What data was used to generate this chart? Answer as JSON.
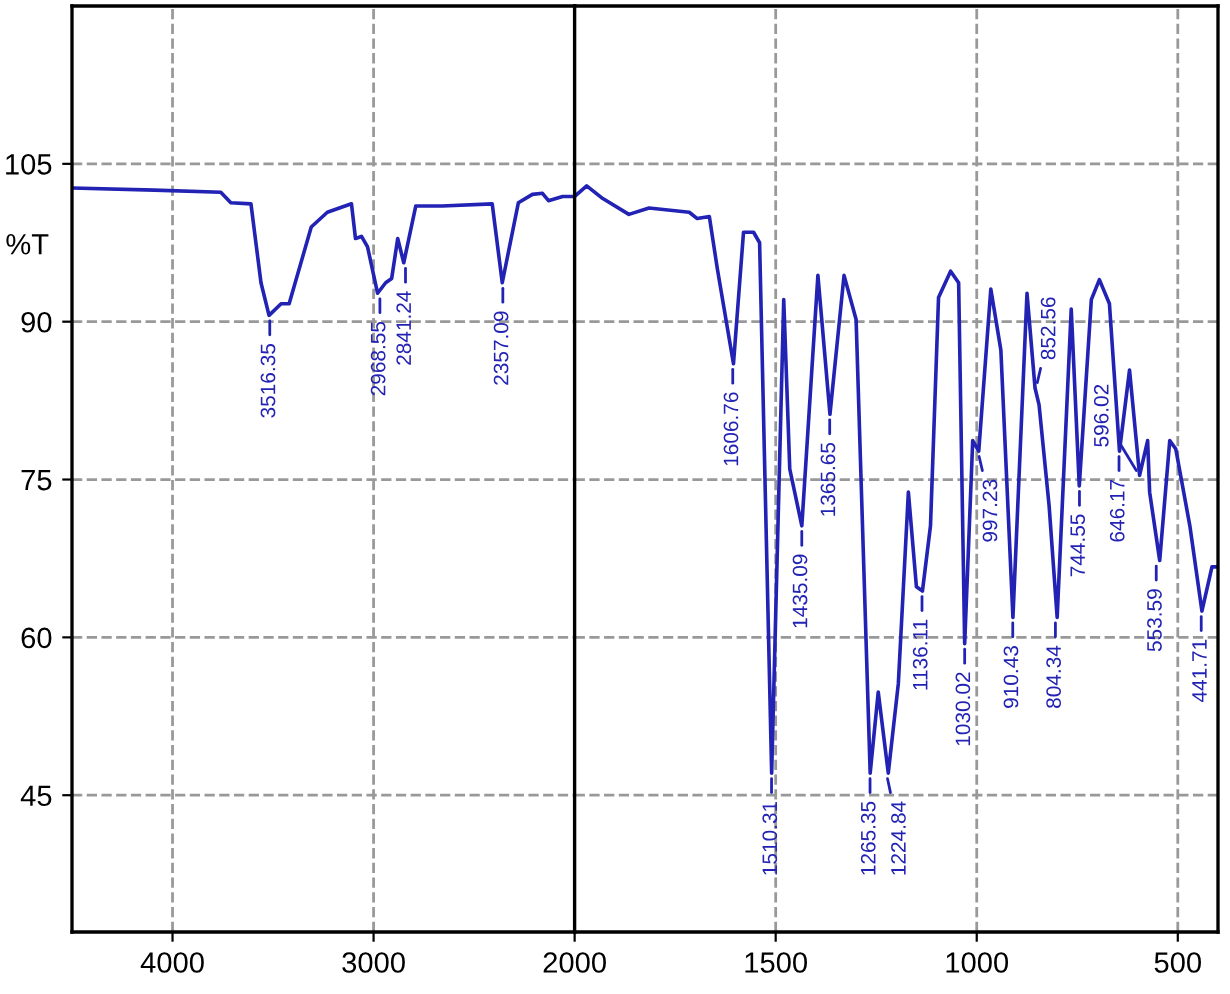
{
  "chart_data": [
    {
      "type": "line",
      "ylabel": "%T",
      "x": [
        4500,
        4090,
        3760,
        3710,
        3610,
        3560,
        3520,
        3460,
        3420,
        3310,
        3230,
        3110,
        3090,
        3060,
        3030,
        2980,
        2940,
        2910,
        2880,
        2850,
        2790,
        2660,
        2410,
        2360,
        2340,
        2280,
        2210,
        2160,
        2130,
        2060,
        2000
      ],
      "series": [
        {
          "color": "#2222b4",
          "values": [
            102.7,
            102.5,
            102.3,
            101.3,
            101.2,
            93.7,
            90.6,
            91.7,
            91.7,
            99.0,
            100.4,
            101.2,
            97.9,
            98.1,
            97.1,
            92.7,
            93.7,
            94.1,
            97.9,
            95.6,
            101.0,
            101.0,
            101.2,
            93.7,
            95.6,
            101.3,
            102.1,
            102.2,
            101.5,
            101.9,
            101.9
          ]
        }
      ],
      "xlim": [
        4500,
        2000
      ],
      "ylim": [
        32,
        120
      ],
      "xticks": [
        4000,
        3000
      ],
      "yticks": [
        45,
        60,
        75,
        90,
        105
      ],
      "grid": true,
      "line_style": "solid",
      "marker": "none",
      "annotations": [
        {
          "text": "3516.35",
          "x": 3516.35,
          "y": 90.6
        },
        {
          "text": "2968.55",
          "x": 2968.55,
          "y": 92.7
        },
        {
          "text": "2841.24",
          "x": 2841.24,
          "y": 95.6
        },
        {
          "text": "2357.09",
          "x": 2357.09,
          "y": 93.7
        }
      ]
    },
    {
      "type": "line",
      "tick_labels": "x",
      "x": [
        2000,
        1970,
        1930,
        1865,
        1815,
        1715,
        1695,
        1665,
        1645,
        1605,
        1580,
        1555,
        1540,
        1510,
        1480,
        1465,
        1435,
        1395,
        1365,
        1330,
        1300,
        1265,
        1245,
        1220,
        1195,
        1170,
        1150,
        1135,
        1115,
        1095,
        1065,
        1045,
        1030,
        1010,
        995,
        965,
        940,
        910,
        875,
        855,
        845,
        820,
        800,
        765,
        745,
        715,
        695,
        670,
        645,
        620,
        595,
        575,
        570,
        545,
        520,
        505,
        470,
        440,
        415,
        405
      ],
      "series": [
        {
          "color": "#2222b4",
          "values": [
            101.9,
            102.9,
            101.7,
            100.2,
            100.8,
            100.4,
            99.8,
            100.0,
            95.0,
            86.0,
            98.5,
            98.5,
            97.5,
            47.1,
            92.1,
            76.0,
            70.6,
            94.4,
            81.2,
            94.4,
            90.2,
            47.1,
            54.8,
            47.1,
            55.6,
            73.8,
            64.8,
            64.4,
            70.6,
            92.3,
            94.8,
            93.7,
            59.4,
            78.7,
            77.7,
            93.1,
            87.3,
            61.9,
            92.7,
            83.7,
            82.1,
            72.5,
            61.9,
            91.2,
            74.4,
            92.1,
            94.0,
            91.7,
            77.7,
            85.4,
            75.4,
            78.7,
            73.8,
            67.3,
            78.7,
            77.9,
            70.6,
            62.5,
            66.7,
            66.7
          ]
        }
      ],
      "xlim": [
        2000,
        400
      ],
      "ylim": [
        32,
        120
      ],
      "xticks": [
        2000,
        1500,
        1000,
        500
      ],
      "yticks": [
        45,
        60,
        75,
        90,
        105
      ],
      "grid": true,
      "line_style": "solid",
      "marker": "none",
      "annotations": [
        {
          "text": "1606.76",
          "x": 1606.76,
          "y": 86.0
        },
        {
          "text": "1510.31",
          "x": 1510.31,
          "y": 47.1
        },
        {
          "text": "1435.09",
          "x": 1435.09,
          "y": 70.6
        },
        {
          "text": "1365.65",
          "x": 1365.65,
          "y": 81.2
        },
        {
          "text": "1265.35",
          "x": 1265.35,
          "y": 47.1
        },
        {
          "text": "1224.84",
          "x": 1224.84,
          "y": 47.1
        },
        {
          "text": "1136.11",
          "x": 1136.11,
          "y": 64.4
        },
        {
          "text": "1030.02",
          "x": 1030.02,
          "y": 59.4
        },
        {
          "text": "997.23",
          "x": 997.23,
          "y": 77.7
        },
        {
          "text": "910.43",
          "x": 910.43,
          "y": 61.9
        },
        {
          "text": "852.56",
          "x": 852.56,
          "y": 83.7
        },
        {
          "text": "804.34",
          "x": 804.34,
          "y": 61.9
        },
        {
          "text": "744.55",
          "x": 744.55,
          "y": 74.4
        },
        {
          "text": "646.17",
          "x": 646.17,
          "y": 77.7
        },
        {
          "text": "596.02",
          "x": 596.02,
          "y": 75.4
        },
        {
          "text": "553.59",
          "x": 553.59,
          "y": 67.3
        },
        {
          "text": "441.71",
          "x": 441.71,
          "y": 62.5
        }
      ]
    }
  ]
}
